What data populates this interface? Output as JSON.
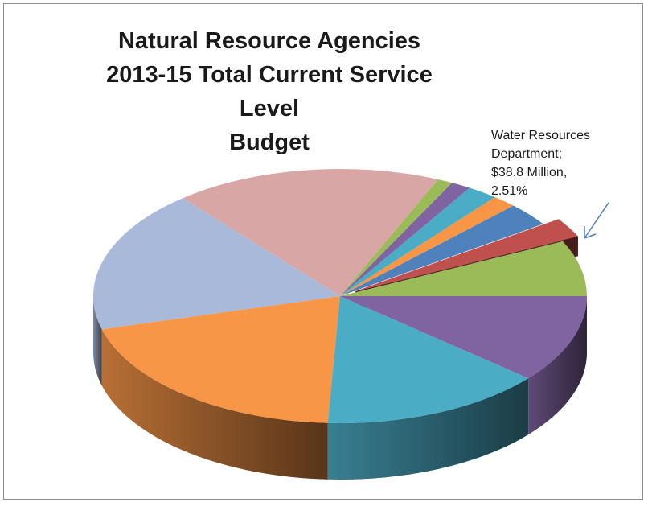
{
  "chart_data": {
    "type": "pie",
    "title": [
      "Natural Resource Agencies",
      "2013-15 Total Current Service Level",
      "Budget"
    ],
    "start_angle_deg": 0,
    "direction": "counterclockwise",
    "slices": [
      {
        "value": 7.1,
        "color": "#9BBB59",
        "exploded": false
      },
      {
        "value": 2.51,
        "color": "#C0504D",
        "exploded": true
      },
      {
        "value": 3.0,
        "color": "#4F81BD",
        "exploded": false
      },
      {
        "value": 1.6,
        "color": "#F79646",
        "exploded": false
      },
      {
        "value": 2.0,
        "color": "#4BACC6",
        "exploded": false
      },
      {
        "value": 1.3,
        "color": "#8064A2",
        "exploded": false
      },
      {
        "value": 1.0,
        "color": "#9BBB59",
        "exploded": false
      },
      {
        "value": 17.5,
        "color": "#D9A6A6",
        "exploded": false
      },
      {
        "value": 18.2,
        "color": "#A9B9D9",
        "exploded": false
      },
      {
        "value": 20.0,
        "color": "#F79646",
        "exploded": false
      },
      {
        "value": 14.6,
        "color": "#4BACC6",
        "exploded": false
      },
      {
        "value": 11.19,
        "color": "#8064A2",
        "exploded": false
      }
    ],
    "annotation": {
      "lines": [
        "Water Resources",
        "Department;",
        "$38.8 Million,",
        "2.51%"
      ],
      "arrow_color": "#4F81BD"
    }
  }
}
